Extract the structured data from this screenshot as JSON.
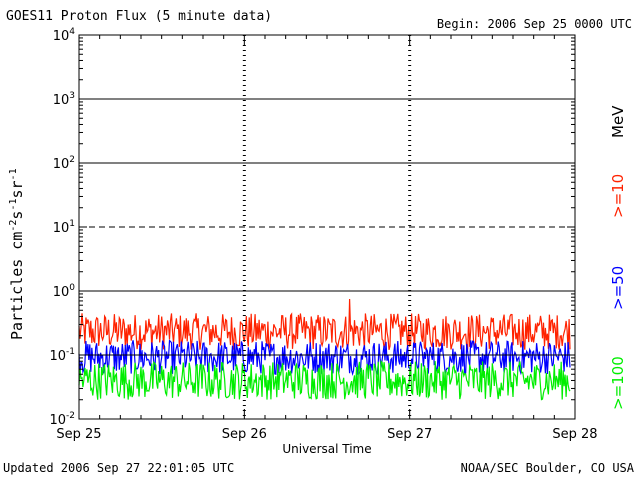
{
  "header": {
    "title": "GOES11 Proton Flux (5 minute data)",
    "begin": "Begin: 2006 Sep 25 0000 UTC"
  },
  "footer": {
    "updated": "Updated 2006 Sep 27 22:01:05 UTC",
    "credit": "NOAA/SEC Boulder, CO USA"
  },
  "chart_data": {
    "type": "line",
    "title": "GOES11 Proton Flux (5 minute data)",
    "xlabel": "Universal Time",
    "ylabel": "Particles cm-2s-1sr-1",
    "y_scale": "log",
    "ylim": [
      0.01,
      10000
    ],
    "xlim": [
      "2006-09-25",
      "2006-09-28"
    ],
    "x_ticks": [
      "Sep 25",
      "Sep 26",
      "Sep 27",
      "Sep 28"
    ],
    "y_ticks": [
      "10^-2",
      "10^-1",
      "10^0",
      "10^1",
      "10^2",
      "10^3",
      "10^4"
    ],
    "reference_lines": [
      {
        "y": 0.1,
        "style": "solid"
      },
      {
        "y": 1,
        "style": "solid"
      },
      {
        "y": 10,
        "style": "dashed"
      },
      {
        "y": 100,
        "style": "solid"
      },
      {
        "y": 1000,
        "style": "solid"
      }
    ],
    "energy_unit": "MeV",
    "series": [
      {
        "name": ">=10",
        "color": "#ff2200",
        "typical_range": [
          0.12,
          0.45
        ],
        "peak": 0.75
      },
      {
        "name": ">=50",
        "color": "#0000ff",
        "typical_range": [
          0.05,
          0.17
        ]
      },
      {
        "name": ">=100",
        "color": "#00ee00",
        "typical_range": [
          0.02,
          0.08
        ]
      }
    ]
  }
}
